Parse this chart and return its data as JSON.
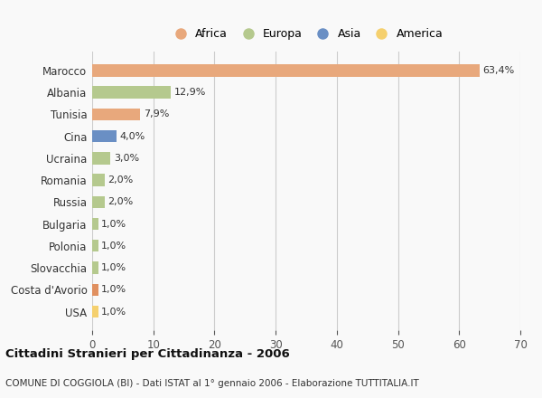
{
  "countries": [
    "Marocco",
    "Albania",
    "Tunisia",
    "Cina",
    "Ucraina",
    "Romania",
    "Russia",
    "Bulgaria",
    "Polonia",
    "Slovacchia",
    "Costa d'Avorio",
    "USA"
  ],
  "values": [
    63.4,
    12.9,
    7.9,
    4.0,
    3.0,
    2.0,
    2.0,
    1.0,
    1.0,
    1.0,
    1.0,
    1.0
  ],
  "labels": [
    "63,4%",
    "12,9%",
    "7,9%",
    "4,0%",
    "3,0%",
    "2,0%",
    "2,0%",
    "1,0%",
    "1,0%",
    "1,0%",
    "1,0%",
    "1,0%"
  ],
  "colors": [
    "#e8a87c",
    "#b5c98e",
    "#e8a87c",
    "#6a8fc4",
    "#b5c98e",
    "#b5c98e",
    "#b5c98e",
    "#b5c98e",
    "#b5c98e",
    "#b5c98e",
    "#e09060",
    "#f5d06e"
  ],
  "legend_labels": [
    "Africa",
    "Europa",
    "Asia",
    "America"
  ],
  "legend_colors": [
    "#e8a87c",
    "#b5c98e",
    "#6a8fc4",
    "#f5d06e"
  ],
  "title": "Cittadini Stranieri per Cittadinanza - 2006",
  "subtitle": "COMUNE DI COGGIOLA (BI) - Dati ISTAT al 1° gennaio 2006 - Elaborazione TUTTITALIA.IT",
  "xlim": [
    0,
    70
  ],
  "xticks": [
    0,
    10,
    20,
    30,
    40,
    50,
    60,
    70
  ],
  "bg_color": "#f9f9f9",
  "grid_color": "#cccccc",
  "bar_height": 0.55
}
